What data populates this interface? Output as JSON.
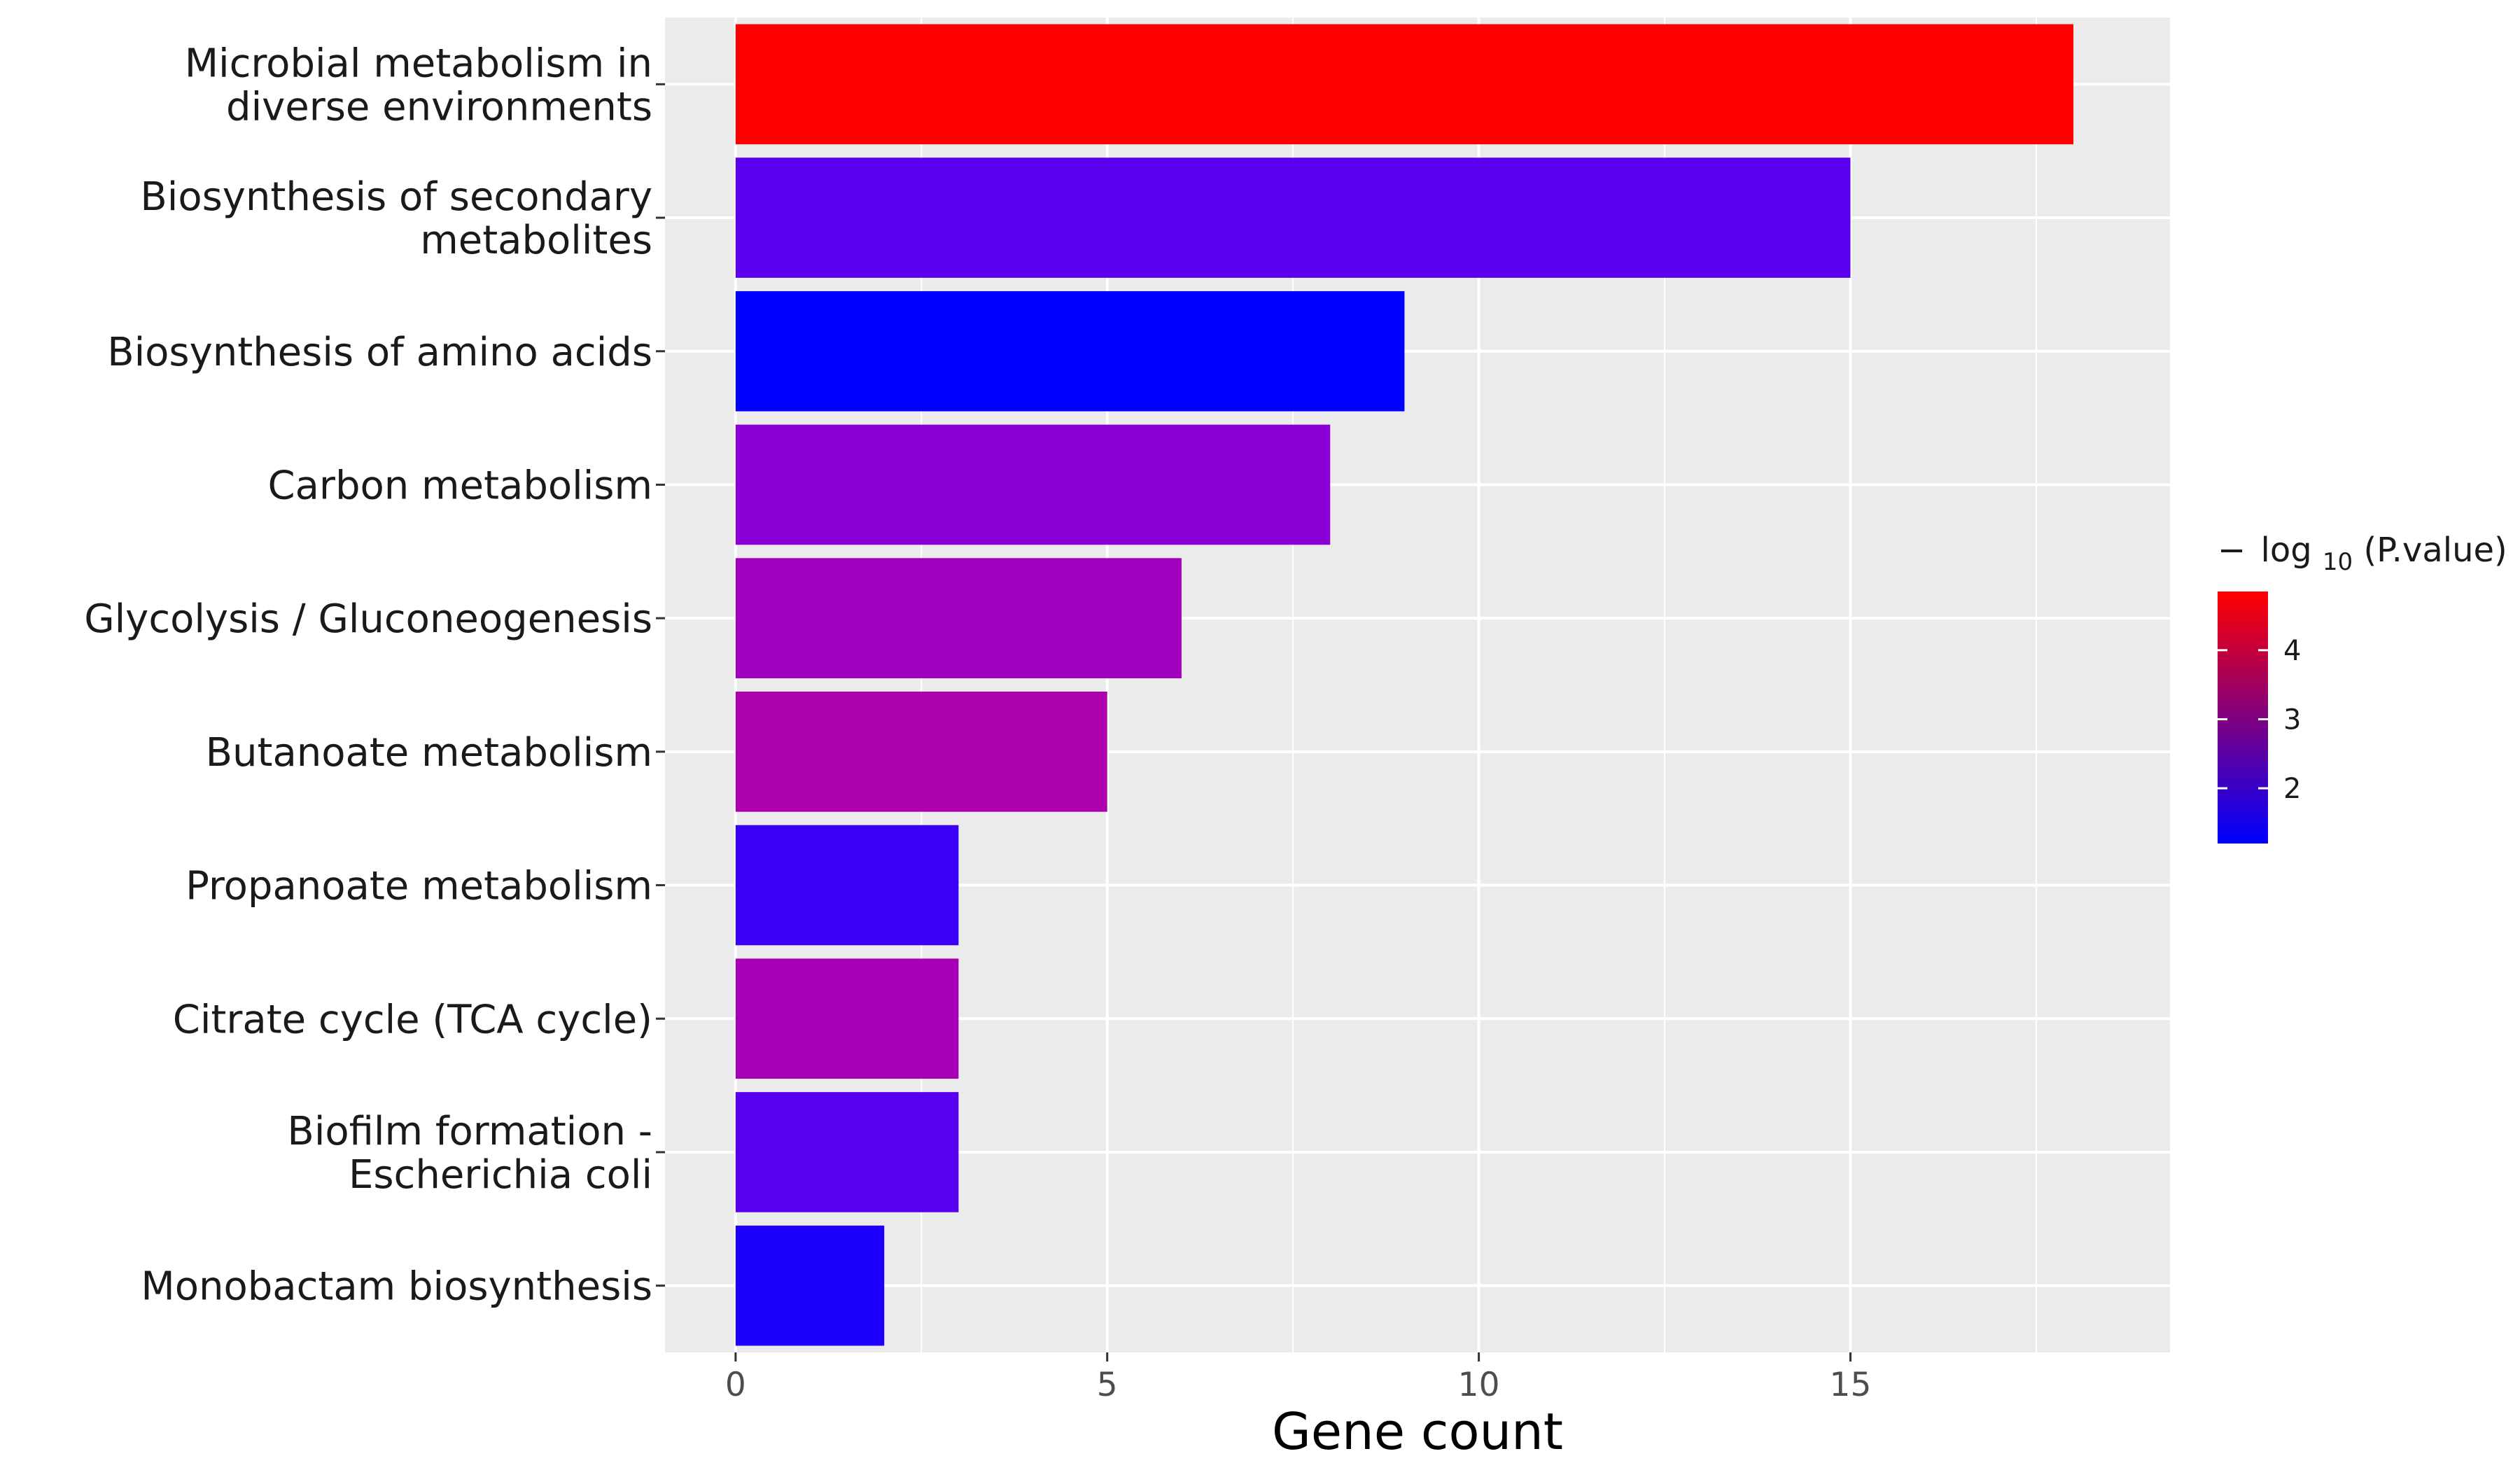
{
  "chart_data": {
    "type": "bar",
    "orientation": "horizontal",
    "categories": [
      [
        "Microbial metabolism in",
        "diverse environments"
      ],
      [
        "Biosynthesis of secondary",
        "metabolites"
      ],
      [
        "Biosynthesis of amino acids"
      ],
      [
        "Carbon metabolism"
      ],
      [
        "Glycolysis / Gluconeogenesis"
      ],
      [
        "Butanoate metabolism"
      ],
      [
        "Propanoate metabolism"
      ],
      [
        "Citrate cycle (TCA cycle)"
      ],
      [
        "Biofilm formation -",
        "Escherichia coli"
      ],
      [
        "Monobactam biosynthesis"
      ]
    ],
    "values": [
      18,
      15,
      9,
      8,
      6,
      5,
      3,
      3,
      3,
      2
    ],
    "bar_colors": [
      "#FF0000",
      "#5B00EE",
      "#0000FF",
      "#8A00D6",
      "#A000BE",
      "#AC00AF",
      "#3A00F7",
      "#A600B7",
      "#5600EE",
      "#1C00FB"
    ],
    "xlabel": "Gene count",
    "xlim": [
      -0.95,
      19.3
    ],
    "xticks": [
      0,
      5,
      10,
      15
    ],
    "grid": true,
    "panel_background": "#EBEBEB",
    "legend": {
      "placement": "right",
      "title_prefix": "−",
      "title_log": "log",
      "title_sub": "10",
      "title_suffix": "(P.value)",
      "range": [
        1.2,
        4.85
      ],
      "ticks": [
        "4",
        "3",
        "2"
      ],
      "tick_values": [
        4,
        3,
        2
      ],
      "color_low": "#0000FF",
      "color_high": "#FF0000"
    }
  }
}
